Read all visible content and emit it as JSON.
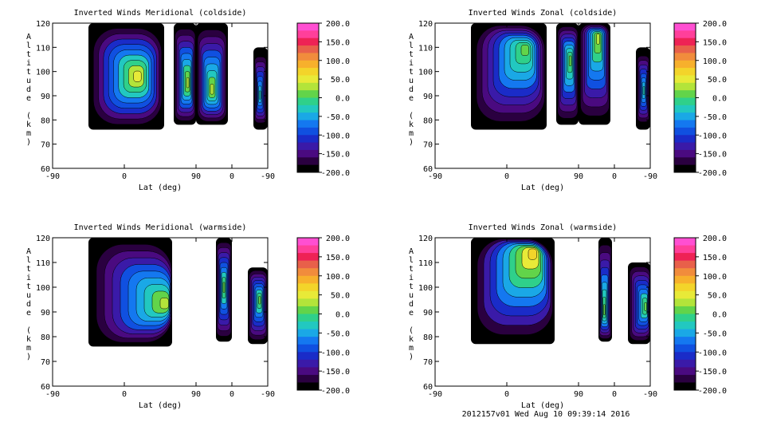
{
  "footer": "2012157v01 Wed Aug 10 09:39:14 2016",
  "colorbar": {
    "labels": [
      "200.0",
      "150.0",
      "100.0",
      "50.0",
      "0.0",
      "-50.0",
      "-100.0",
      "-150.0",
      "-200.0"
    ],
    "colors": [
      "#ff4fd2",
      "#ff3f9a",
      "#ee2255",
      "#e8604a",
      "#f18c3c",
      "#f7b02c",
      "#f3d42a",
      "#e8ea38",
      "#b3e43a",
      "#62d44a",
      "#2fd08a",
      "#22c8c0",
      "#1aa8e6",
      "#1478f0",
      "#1050e0",
      "#1a2cc8",
      "#3a1aa8",
      "#4a0a80",
      "#2a0040",
      "#000000"
    ]
  },
  "panel_titles": [
    "Inverted Winds Meridional (coldside)",
    "Inverted Winds Zonal (coldside)",
    "Inverted Winds Meridional (warmside)",
    "Inverted Winds Zonal (warmside)"
  ],
  "chart_data": [
    {
      "type": "heatmap",
      "title": "Inverted Winds Meridional (coldside)",
      "xlabel": "Lat (deg)",
      "ylabel": "Altitude (km)",
      "x_ticks": [
        "-90",
        "0",
        "90",
        "0",
        "-90"
      ],
      "y_ticks": [
        "60",
        "70",
        "80",
        "90",
        "100",
        "110",
        "120"
      ],
      "ylim": [
        60,
        120
      ],
      "value_range": [
        -200,
        200
      ],
      "blocks": [
        {
          "x": [
            -45,
            50
          ],
          "y": [
            76,
            120
          ],
          "peak": 50,
          "peak_at": [
            18,
            98
          ]
        },
        {
          "x": [
            62,
            90
          ],
          "y": [
            78,
            120
          ],
          "peak": 40,
          "peak_at": [
            80,
            95
          ]
        },
        {
          "x": [
            90,
            130
          ],
          "y": [
            78,
            120
          ],
          "peak": 30,
          "peak_at": [
            110,
            92
          ]
        },
        {
          "x": [
            162,
            180
          ],
          "y": [
            76,
            110
          ],
          "peak": -20,
          "peak_at": [
            170,
            90
          ]
        }
      ]
    },
    {
      "type": "heatmap",
      "title": "Inverted Winds Zonal (coldside)",
      "xlabel": "Lat (deg)",
      "ylabel": "Altitude (km)",
      "x_ticks": [
        "-90",
        "0",
        "90",
        "0",
        "-90"
      ],
      "y_ticks": [
        "60",
        "70",
        "80",
        "90",
        "100",
        "110",
        "120"
      ],
      "ylim": [
        60,
        120
      ],
      "value_range": [
        -200,
        200
      ],
      "blocks": [
        {
          "x": [
            -45,
            50
          ],
          "y": [
            76,
            120
          ],
          "peak": 20,
          "peak_at": [
            25,
            110
          ]
        },
        {
          "x": [
            62,
            90
          ],
          "y": [
            78,
            120
          ],
          "peak": 20,
          "peak_at": [
            80,
            105
          ]
        },
        {
          "x": [
            90,
            130
          ],
          "y": [
            78,
            120
          ],
          "peak": 40,
          "peak_at": [
            115,
            115
          ]
        },
        {
          "x": [
            162,
            180
          ],
          "y": [
            76,
            110
          ],
          "peak": -30,
          "peak_at": [
            172,
            92
          ]
        }
      ]
    },
    {
      "type": "heatmap",
      "title": "Inverted Winds Meridional (warmside)",
      "xlabel": "Lat (deg)",
      "ylabel": "Altitude (km)",
      "x_ticks": [
        "-90",
        "0",
        "90",
        "0",
        "-90"
      ],
      "y_ticks": [
        "60",
        "70",
        "80",
        "90",
        "100",
        "110",
        "120"
      ],
      "ylim": [
        60,
        120
      ],
      "value_range": [
        -200,
        200
      ],
      "blocks": [
        {
          "x": [
            -45,
            60
          ],
          "y": [
            76,
            120
          ],
          "peak": 30,
          "peak_at": [
            55,
            93
          ]
        },
        {
          "x": [
            115,
            135
          ],
          "y": [
            78,
            120
          ],
          "peak": 10,
          "peak_at": [
            125,
            100
          ]
        },
        {
          "x": [
            155,
            180
          ],
          "y": [
            77,
            108
          ],
          "peak": 10,
          "peak_at": [
            170,
            95
          ]
        }
      ]
    },
    {
      "type": "heatmap",
      "title": "Inverted Winds Zonal (warmside)",
      "xlabel": "Lat (deg)",
      "ylabel": "Altitude (km)",
      "x_ticks": [
        "-90",
        "0",
        "90",
        "0",
        "-90"
      ],
      "y_ticks": [
        "60",
        "70",
        "80",
        "90",
        "100",
        "110",
        "120"
      ],
      "ylim": [
        60,
        120
      ],
      "value_range": [
        -200,
        200
      ],
      "blocks": [
        {
          "x": [
            -45,
            60
          ],
          "y": [
            77,
            120
          ],
          "peak": 80,
          "peak_at": [
            35,
            115
          ]
        },
        {
          "x": [
            115,
            132
          ],
          "y": [
            78,
            120
          ],
          "peak": 20,
          "peak_at": [
            122,
            90
          ]
        },
        {
          "x": [
            152,
            180
          ],
          "y": [
            77,
            110
          ],
          "peak": 10,
          "peak_at": [
            175,
            92
          ]
        }
      ]
    }
  ]
}
